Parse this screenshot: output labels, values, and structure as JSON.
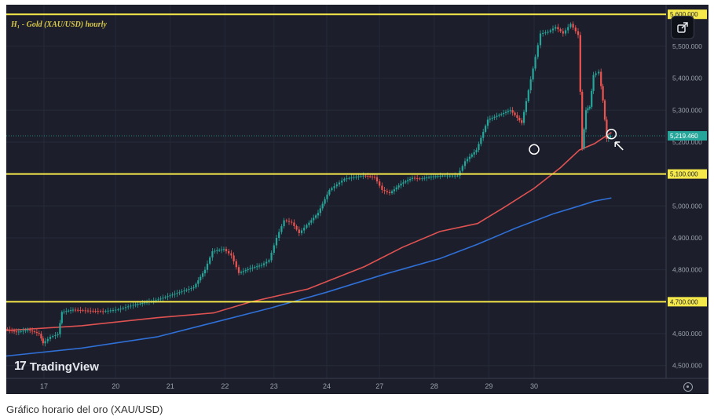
{
  "chart": {
    "symbol_label": "H₁ - Gold (XAU/USD) hourly",
    "watermark": "TradingView",
    "share_icon": "share-icon",
    "settings_icon": "settings-icon"
  },
  "caption": "Gráfico horario del oro (XAU/USD)",
  "chart_data": {
    "type": "line",
    "title": "",
    "xlabel": "",
    "ylabel": "",
    "x": [
      "16",
      "17",
      "20",
      "21",
      "22",
      "23",
      "24",
      "27",
      "28",
      "29",
      "30",
      "30.5"
    ],
    "x_tick_labels": [
      "17",
      "20",
      "21",
      "22",
      "23",
      "24",
      "27",
      "28",
      "29",
      "30"
    ],
    "y_tick_labels": [
      "4,500.000",
      "4,600.000",
      "4,800.000",
      "4,900.000",
      "5,000.000",
      "5,200.000",
      "5,300.000",
      "5,400.000",
      "5,500.000"
    ],
    "y_tick_values": [
      4500,
      4600,
      4800,
      4900,
      5000,
      5200,
      5300,
      5400,
      5500
    ],
    "ylim": [
      4460,
      5630
    ],
    "horizontal_levels": [
      {
        "value": 5600,
        "label": "5,600.000",
        "color": "#f5e84b"
      },
      {
        "value": 5100,
        "label": "5,100.000",
        "color": "#f5e84b"
      },
      {
        "value": 4700,
        "label": "4,700.000",
        "color": "#f5e84b"
      }
    ],
    "current_price": {
      "value": 5219.46,
      "label": "5,219.460",
      "color": "#26a69a"
    },
    "series": [
      {
        "color": "#d6d6d6",
        "points": [
          [
            16.0,
            4615
          ],
          [
            16.3,
            4605
          ],
          [
            16.6,
            4612
          ],
          [
            16.9,
            4600
          ],
          [
            17.0,
            4570
          ],
          [
            17.2,
            4590
          ],
          [
            17.4,
            4598
          ],
          [
            17.5,
            4668
          ],
          [
            17.8,
            4675
          ],
          [
            18.2,
            4672
          ],
          [
            18.6,
            4670
          ],
          [
            19.0,
            4676
          ],
          [
            19.4,
            4690
          ],
          [
            20.0,
            4705
          ],
          [
            20.5,
            4725
          ],
          [
            21.0,
            4745
          ],
          [
            21.3,
            4800
          ],
          [
            21.5,
            4858
          ],
          [
            21.8,
            4865
          ],
          [
            22.0,
            4845
          ],
          [
            22.2,
            4790
          ],
          [
            22.5,
            4805
          ],
          [
            22.8,
            4815
          ],
          [
            23.0,
            4830
          ],
          [
            23.2,
            4900
          ],
          [
            23.4,
            4955
          ],
          [
            23.6,
            4948
          ],
          [
            23.8,
            4915
          ],
          [
            24.0,
            4940
          ],
          [
            24.3,
            4978
          ],
          [
            24.6,
            5050
          ],
          [
            25.0,
            5085
          ],
          [
            25.5,
            5095
          ],
          [
            25.8,
            5090
          ],
          [
            26.0,
            5050
          ],
          [
            26.2,
            5040
          ],
          [
            26.5,
            5070
          ],
          [
            26.8,
            5088
          ],
          [
            27.0,
            5085
          ],
          [
            27.3,
            5092
          ],
          [
            27.6,
            5095
          ],
          [
            28.0,
            5095
          ],
          [
            28.2,
            5140
          ],
          [
            28.5,
            5175
          ],
          [
            28.8,
            5270
          ],
          [
            29.1,
            5285
          ],
          [
            29.4,
            5300
          ],
          [
            29.7,
            5260
          ],
          [
            30.0,
            5430
          ],
          [
            30.2,
            5540
          ],
          [
            30.4,
            5545
          ],
          [
            30.6,
            5560
          ],
          [
            30.8,
            5540
          ],
          [
            31.0,
            5570
          ],
          [
            31.2,
            5535
          ],
          [
            31.3,
            5180
          ],
          [
            31.4,
            5300
          ],
          [
            31.5,
            5310
          ],
          [
            31.6,
            5410
          ],
          [
            31.75,
            5420
          ],
          [
            31.85,
            5330
          ],
          [
            31.95,
            5210
          ],
          [
            32.05,
            5219
          ]
        ]
      },
      {
        "color": "#e05252",
        "points": [
          [
            16.0,
            4610
          ],
          [
            18.0,
            4625
          ],
          [
            20.0,
            4650
          ],
          [
            21.5,
            4665
          ],
          [
            22.5,
            4700
          ],
          [
            24.0,
            4740
          ],
          [
            25.5,
            4810
          ],
          [
            26.5,
            4870
          ],
          [
            27.5,
            4920
          ],
          [
            28.5,
            4945
          ],
          [
            29.2,
            4995
          ],
          [
            30.0,
            5055
          ],
          [
            30.7,
            5120
          ],
          [
            31.2,
            5175
          ],
          [
            31.6,
            5195
          ],
          [
            32.05,
            5230
          ]
        ]
      },
      {
        "color": "#2f6fd6",
        "points": [
          [
            16.0,
            4530
          ],
          [
            18.0,
            4555
          ],
          [
            20.0,
            4590
          ],
          [
            21.5,
            4635
          ],
          [
            23.0,
            4680
          ],
          [
            24.5,
            4730
          ],
          [
            26.0,
            4785
          ],
          [
            27.5,
            4835
          ],
          [
            28.5,
            4880
          ],
          [
            29.5,
            4930
          ],
          [
            30.5,
            4975
          ],
          [
            31.2,
            5000
          ],
          [
            31.6,
            5015
          ],
          [
            32.05,
            5025
          ]
        ]
      }
    ],
    "annotations": [
      {
        "type": "circle",
        "x": 30.0,
        "y": 5177
      },
      {
        "type": "circle",
        "x": 32.05,
        "y": 5225
      },
      {
        "type": "arrow",
        "x": 32.15,
        "y": 5200
      }
    ],
    "grid": true,
    "legend": "none"
  }
}
